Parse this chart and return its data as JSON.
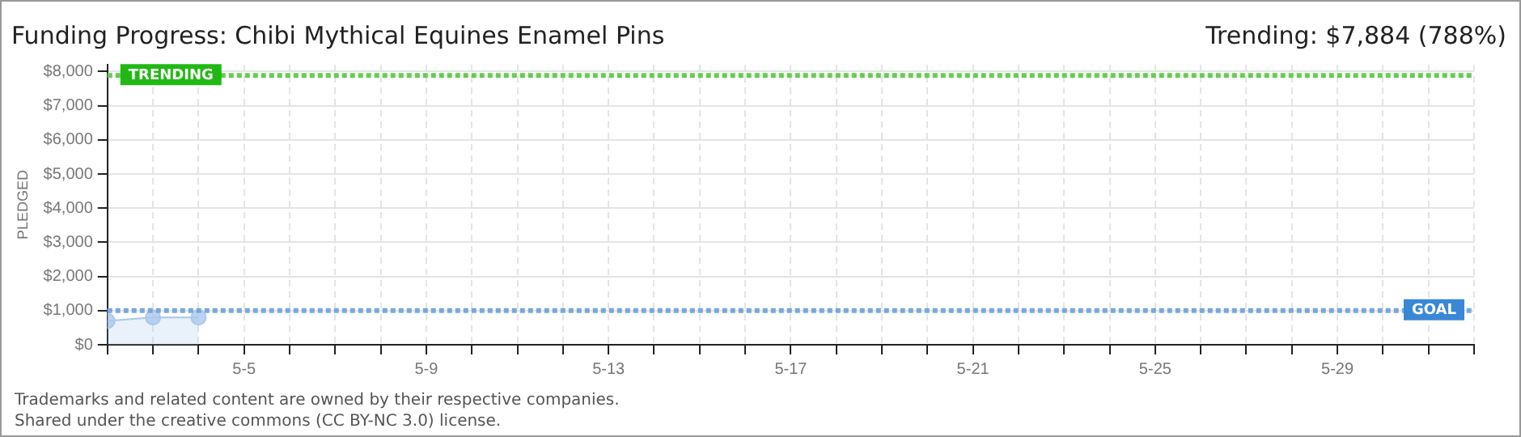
{
  "chart_data": {
    "type": "area",
    "title": "Funding Progress: Chibi Mythical Equines Enamel Pins",
    "subtitle": "Trending: $7,884 (788%)",
    "ylabel": "PLEDGED",
    "x": [
      "--05-02",
      "--05-03",
      "--05-04"
    ],
    "series": [
      {
        "color": "#a9c8ec",
        "values": [
          700,
          800,
          800
        ]
      }
    ],
    "marker": "circle",
    "xlim": [
      "--05-02",
      "--06-01"
    ],
    "xticks": [
      {
        "value": "--05-02",
        "label": null
      },
      {
        "value": "--05-03",
        "label": null
      },
      {
        "value": "--05-04",
        "label": null
      },
      {
        "value": "--05-05",
        "label": "5-5"
      },
      {
        "value": "--05-06",
        "label": null
      },
      {
        "value": "--05-07",
        "label": null
      },
      {
        "value": "--05-08",
        "label": null
      },
      {
        "value": "--05-09",
        "label": "5-9"
      },
      {
        "value": "--05-10",
        "label": null
      },
      {
        "value": "--05-11",
        "label": null
      },
      {
        "value": "--05-12",
        "label": null
      },
      {
        "value": "--05-13",
        "label": "5-13"
      },
      {
        "value": "--05-14",
        "label": null
      },
      {
        "value": "--05-15",
        "label": null
      },
      {
        "value": "--05-16",
        "label": null
      },
      {
        "value": "--05-17",
        "label": "5-17"
      },
      {
        "value": "--05-18",
        "label": null
      },
      {
        "value": "--05-19",
        "label": null
      },
      {
        "value": "--05-20",
        "label": null
      },
      {
        "value": "--05-21",
        "label": "5-21"
      },
      {
        "value": "--05-22",
        "label": null
      },
      {
        "value": "--05-23",
        "label": null
      },
      {
        "value": "--05-24",
        "label": null
      },
      {
        "value": "--05-25",
        "label": "5-25"
      },
      {
        "value": "--05-26",
        "label": null
      },
      {
        "value": "--05-27",
        "label": null
      },
      {
        "value": "--05-28",
        "label": null
      },
      {
        "value": "--05-29",
        "label": "5-29"
      },
      {
        "value": "--05-30",
        "label": null
      },
      {
        "value": "--05-31",
        "label": null
      },
      {
        "value": "--06-01",
        "label": null
      }
    ],
    "ylim": [
      0,
      8200
    ],
    "yticks": [
      {
        "value": 0,
        "label": "$0"
      },
      {
        "value": 1000,
        "label": "$1,000"
      },
      {
        "value": 2000,
        "label": "$2,000"
      },
      {
        "value": 3000,
        "label": "$3,000"
      },
      {
        "value": 4000,
        "label": "$4,000"
      },
      {
        "value": 5000,
        "label": "$5,000"
      },
      {
        "value": 6000,
        "label": "$6,000"
      },
      {
        "value": 7000,
        "label": "$7,000"
      },
      {
        "value": 8000,
        "label": "$8,000"
      }
    ],
    "grid": true,
    "ref_lines": [
      {
        "axis": "y",
        "value": 1000,
        "label": "GOAL",
        "color": "#7aa7dc",
        "line_style": "dotted"
      },
      {
        "axis": "y",
        "value": 7884,
        "label": "TRENDING",
        "color": "#66cc55",
        "line_style": "dotted"
      }
    ],
    "annotations": [
      "Trademarks and related content are owned by their respective companies.",
      "Shared under the creative commons (CC BY-NC 3.0) license."
    ]
  }
}
